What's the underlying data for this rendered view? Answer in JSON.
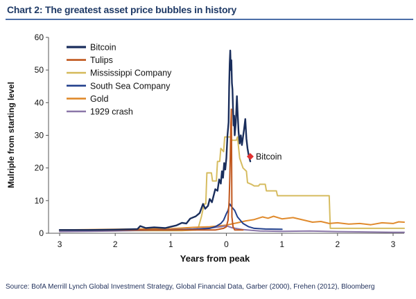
{
  "title": "Chart 2: The greatest asset price bubbles in history",
  "source": "Source:  BofA Merrill Lynch Global Investment Strategy, Global Financial Data, Garber (2000), Frehen (2012),  Bloomberg",
  "chart_data": {
    "type": "line",
    "xlabel": "Years from peak",
    "ylabel": "Mulriple from starting level",
    "xlim": [
      -3.2,
      3.2
    ],
    "ylim": [
      0,
      60
    ],
    "xticks": [
      -3,
      -2,
      -1,
      0,
      1,
      2,
      3
    ],
    "xtick_labels": [
      "3",
      "2",
      "1",
      "0",
      "1",
      "2",
      "3"
    ],
    "yticks": [
      0,
      10,
      20,
      30,
      40,
      50,
      60
    ],
    "legend_position": "top-left",
    "series": [
      {
        "name": "Bitcoin",
        "color": "#1a2e5c",
        "width": 2.4,
        "points": [
          [
            -3.0,
            1.0
          ],
          [
            -2.5,
            1.0
          ],
          [
            -2.0,
            1.1
          ],
          [
            -1.6,
            1.3
          ],
          [
            -1.55,
            2.2
          ],
          [
            -1.45,
            1.6
          ],
          [
            -1.3,
            1.8
          ],
          [
            -1.1,
            1.6
          ],
          [
            -1.0,
            2.0
          ],
          [
            -0.9,
            2.4
          ],
          [
            -0.8,
            3.2
          ],
          [
            -0.72,
            3.0
          ],
          [
            -0.65,
            4.5
          ],
          [
            -0.55,
            5.2
          ],
          [
            -0.48,
            6.2
          ],
          [
            -0.42,
            9.0
          ],
          [
            -0.38,
            7.5
          ],
          [
            -0.33,
            8.4
          ],
          [
            -0.3,
            10.5
          ],
          [
            -0.26,
            9.5
          ],
          [
            -0.2,
            13.5
          ],
          [
            -0.16,
            13.0
          ],
          [
            -0.13,
            16.5
          ],
          [
            -0.1,
            15.2
          ],
          [
            -0.08,
            19.0
          ],
          [
            -0.06,
            17.0
          ],
          [
            -0.04,
            21.5
          ],
          [
            -0.02,
            19.5
          ],
          [
            0.0,
            23.0
          ],
          [
            0.02,
            30.0
          ],
          [
            0.04,
            34.0
          ],
          [
            0.05,
            45.0
          ],
          [
            0.06,
            52.0
          ],
          [
            0.07,
            56.0
          ],
          [
            0.08,
            50.0
          ],
          [
            0.09,
            53.0
          ],
          [
            0.1,
            46.0
          ],
          [
            0.11,
            44.0
          ],
          [
            0.12,
            38.0
          ],
          [
            0.13,
            33.0
          ],
          [
            0.14,
            36.0
          ],
          [
            0.15,
            30.0
          ],
          [
            0.17,
            34.0
          ],
          [
            0.19,
            42.0
          ],
          [
            0.2,
            38.0
          ],
          [
            0.22,
            31.0
          ],
          [
            0.24,
            27.5
          ],
          [
            0.26,
            30.0
          ],
          [
            0.28,
            27.0
          ],
          [
            0.3,
            29.5
          ],
          [
            0.32,
            32.0
          ],
          [
            0.34,
            35.0
          ],
          [
            0.36,
            29.0
          ],
          [
            0.38,
            26.0
          ],
          [
            0.4,
            24.0
          ],
          [
            0.43,
            22.0
          ]
        ]
      },
      {
        "name": "Tulips",
        "color": "#c0561c",
        "width": 2,
        "points": [
          [
            -3.0,
            1.0
          ],
          [
            -2.0,
            1.0
          ],
          [
            -1.0,
            1.0
          ],
          [
            -0.5,
            1.0
          ],
          [
            -0.2,
            1.0
          ],
          [
            -0.05,
            1.5
          ],
          [
            0.0,
            2.0
          ],
          [
            0.03,
            4.0
          ],
          [
            0.05,
            10.0
          ],
          [
            0.06,
            16.0
          ],
          [
            0.07,
            23.0
          ],
          [
            0.08,
            33.0
          ],
          [
            0.09,
            38.0
          ],
          [
            0.1,
            5.0
          ],
          [
            0.12,
            2.0
          ],
          [
            0.15,
            1.0
          ],
          [
            0.3,
            1.0
          ]
        ]
      },
      {
        "name": "Mississippi Company",
        "color": "#d6bc60",
        "width": 2,
        "points": [
          [
            -3.0,
            0.8
          ],
          [
            -0.8,
            0.8
          ],
          [
            -0.55,
            1.0
          ],
          [
            -0.5,
            2.0
          ],
          [
            -0.45,
            5.0
          ],
          [
            -0.4,
            9.0
          ],
          [
            -0.37,
            9.0
          ],
          [
            -0.35,
            18.5
          ],
          [
            -0.27,
            18.5
          ],
          [
            -0.25,
            16.0
          ],
          [
            -0.18,
            16.0
          ],
          [
            -0.16,
            22.0
          ],
          [
            -0.12,
            22.0
          ],
          [
            -0.1,
            26.0
          ],
          [
            -0.05,
            25.0
          ],
          [
            -0.03,
            29.5
          ],
          [
            0.08,
            29.5
          ],
          [
            0.1,
            28.5
          ],
          [
            0.18,
            28.5
          ],
          [
            0.2,
            29.5
          ],
          [
            0.24,
            23.0
          ],
          [
            0.3,
            20.0
          ],
          [
            0.36,
            19.0
          ],
          [
            0.38,
            15.5
          ],
          [
            0.45,
            15.0
          ],
          [
            0.5,
            14.5
          ],
          [
            0.58,
            14.5
          ],
          [
            0.6,
            15.0
          ],
          [
            0.7,
            15.0
          ],
          [
            0.72,
            13.0
          ],
          [
            0.9,
            13.0
          ],
          [
            0.92,
            11.5
          ],
          [
            1.85,
            11.5
          ],
          [
            1.87,
            1.5
          ],
          [
            3.2,
            1.5
          ]
        ]
      },
      {
        "name": "South Sea Company",
        "color": "#213f8c",
        "width": 2,
        "points": [
          [
            -3.0,
            1.0
          ],
          [
            -1.0,
            1.0
          ],
          [
            -0.5,
            1.2
          ],
          [
            -0.3,
            1.5
          ],
          [
            -0.2,
            2.0
          ],
          [
            -0.1,
            3.0
          ],
          [
            -0.05,
            4.0
          ],
          [
            0.0,
            6.0
          ],
          [
            0.03,
            7.0
          ],
          [
            0.06,
            9.0
          ],
          [
            0.1,
            8.0
          ],
          [
            0.15,
            7.0
          ],
          [
            0.2,
            5.0
          ],
          [
            0.3,
            3.0
          ],
          [
            0.4,
            2.0
          ],
          [
            0.5,
            1.5
          ],
          [
            0.7,
            1.3
          ],
          [
            1.0,
            1.2
          ]
        ]
      },
      {
        "name": "Gold",
        "color": "#e08a2c",
        "width": 2,
        "points": [
          [
            -3.0,
            1.0
          ],
          [
            -2.0,
            1.2
          ],
          [
            -1.0,
            1.4
          ],
          [
            -0.6,
            1.8
          ],
          [
            -0.3,
            2.0
          ],
          [
            0.0,
            2.5
          ],
          [
            0.2,
            3.2
          ],
          [
            0.35,
            3.8
          ],
          [
            0.5,
            4.2
          ],
          [
            0.65,
            5.0
          ],
          [
            0.75,
            4.6
          ],
          [
            0.85,
            5.2
          ],
          [
            1.0,
            4.4
          ],
          [
            1.2,
            4.8
          ],
          [
            1.4,
            4.0
          ],
          [
            1.55,
            3.4
          ],
          [
            1.7,
            3.6
          ],
          [
            1.85,
            3.0
          ],
          [
            2.0,
            3.2
          ],
          [
            2.2,
            2.8
          ],
          [
            2.4,
            3.0
          ],
          [
            2.6,
            2.6
          ],
          [
            2.8,
            3.2
          ],
          [
            3.0,
            3.0
          ],
          [
            3.1,
            3.5
          ],
          [
            3.2,
            3.4
          ]
        ]
      },
      {
        "name": "1929 crash",
        "color": "#8a76a8",
        "width": 2,
        "points": [
          [
            -3.0,
            0.5
          ],
          [
            -2.5,
            0.6
          ],
          [
            -2.0,
            0.7
          ],
          [
            -1.5,
            0.9
          ],
          [
            -1.0,
            1.1
          ],
          [
            -0.6,
            1.3
          ],
          [
            -0.3,
            1.6
          ],
          [
            -0.1,
            2.0
          ],
          [
            0.0,
            2.3
          ],
          [
            0.1,
            1.7
          ],
          [
            0.3,
            1.1
          ],
          [
            0.6,
            0.7
          ],
          [
            1.0,
            0.6
          ],
          [
            1.5,
            0.7
          ],
          [
            2.0,
            0.5
          ],
          [
            2.5,
            0.4
          ],
          [
            3.0,
            0.3
          ],
          [
            3.2,
            0.3
          ]
        ]
      }
    ],
    "annotations": [
      {
        "label": "Bitcoin",
        "x": 0.43,
        "y": 23.5,
        "marker_color": "#e03030"
      }
    ]
  }
}
